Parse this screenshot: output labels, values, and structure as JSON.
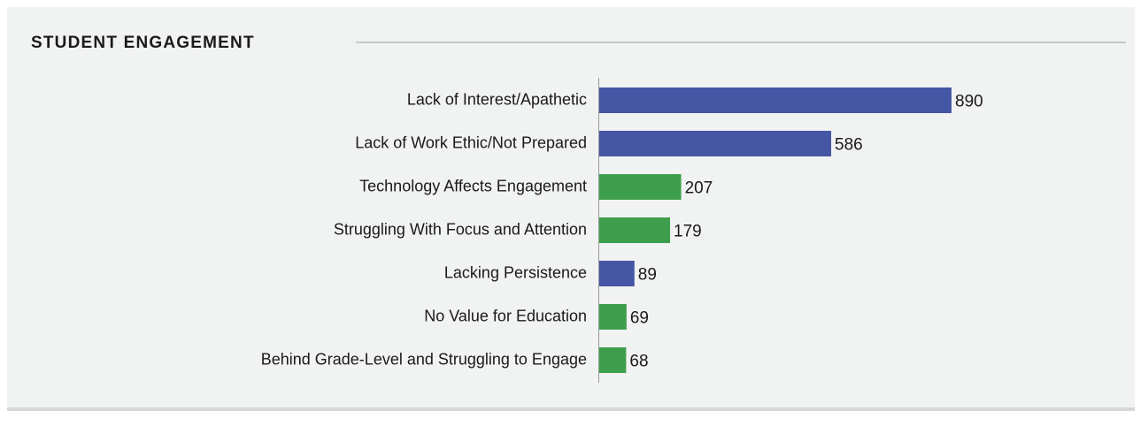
{
  "chart_data": {
    "type": "barh",
    "title": "STUDENT ENGAGEMENT",
    "categories": [
      "Lack of Interest/Apathetic",
      "Lack of Work Ethic/Not Prepared",
      "Technology Affects Engagement",
      "Struggling With Focus and Attention",
      "Lacking Persistence",
      "No Value for Education",
      "Behind Grade-Level and Struggling to Engage"
    ],
    "values": [
      890,
      586,
      207,
      179,
      89,
      69,
      68
    ],
    "colors": [
      "#4556a5",
      "#4556a5",
      "#3d9f4b",
      "#3d9f4b",
      "#4556a5",
      "#3d9f4b",
      "#3d9f4b"
    ]
  }
}
